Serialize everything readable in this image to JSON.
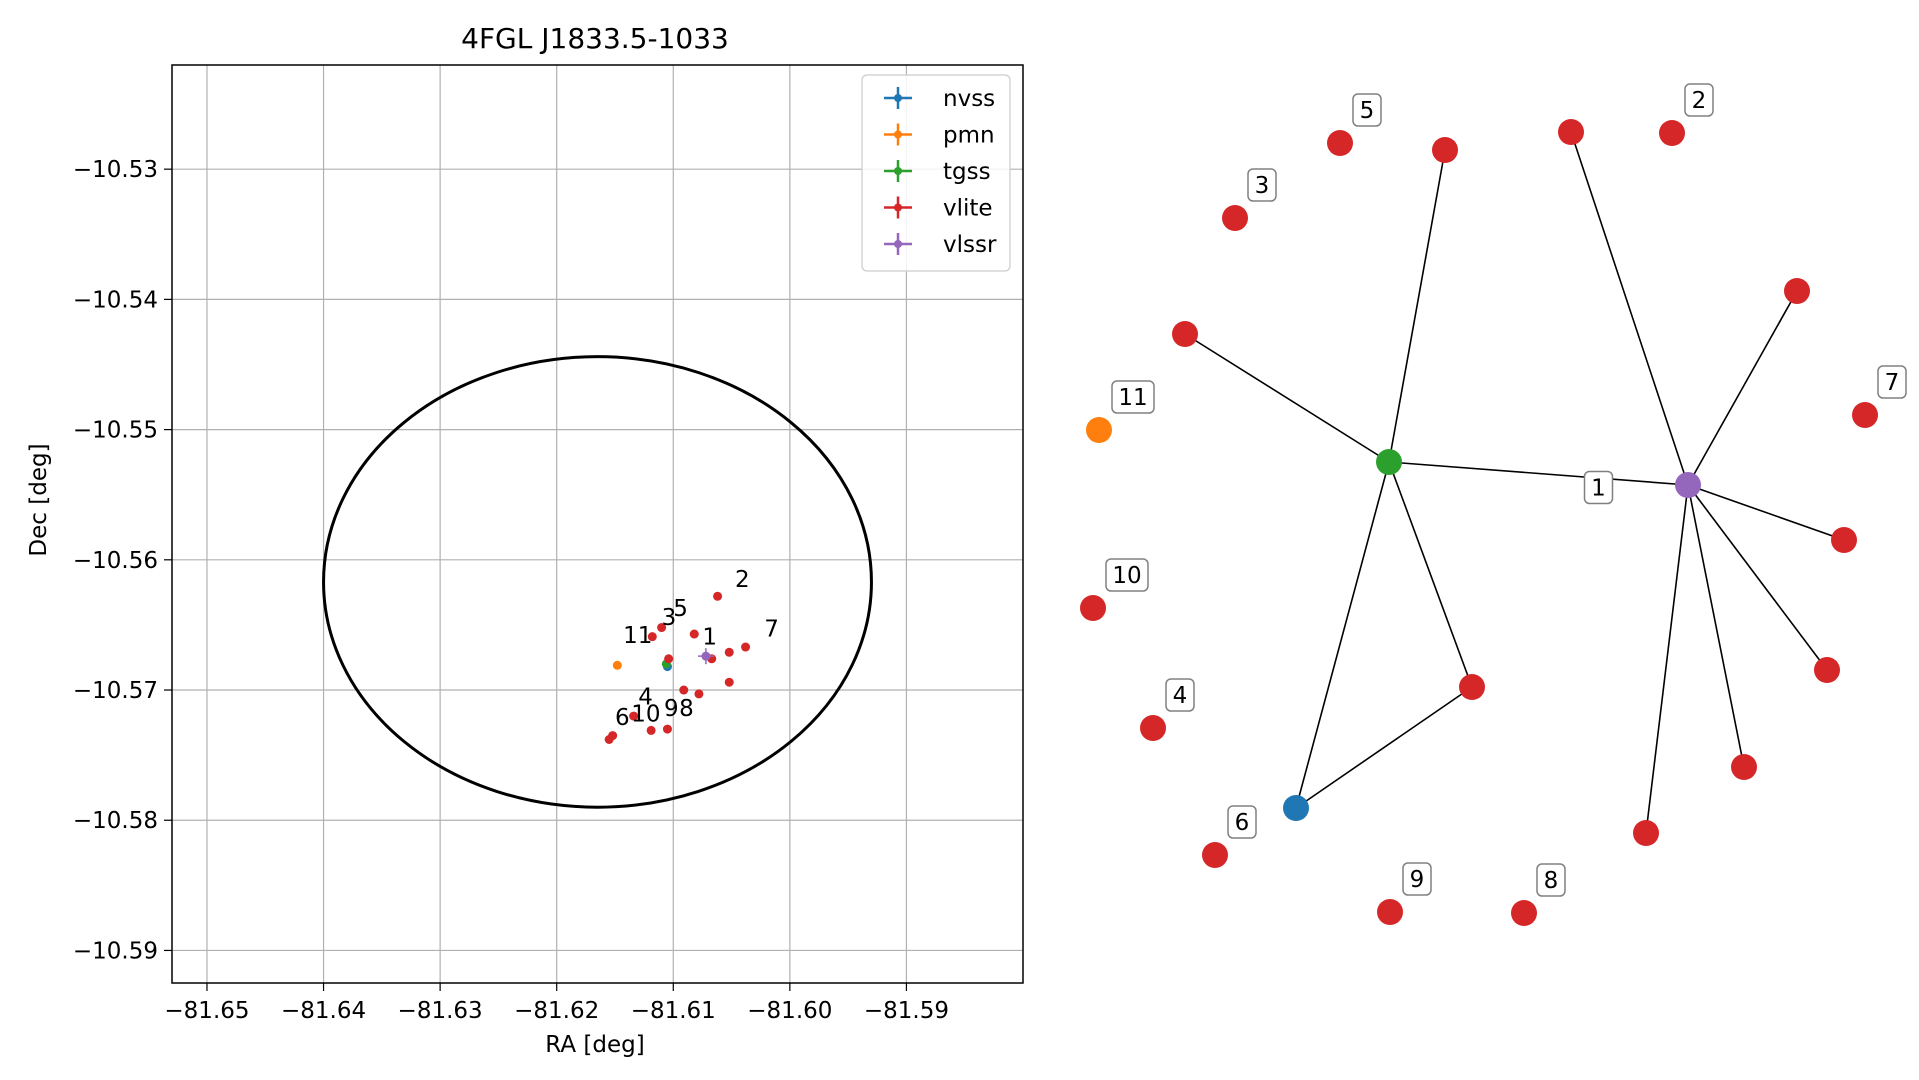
{
  "colors": {
    "nvss": "#1f77b4",
    "pmn": "#ff7f0e",
    "tgss": "#2ca02c",
    "vlite": "#d62728",
    "vlssr": "#9467bd",
    "grid": "#b0b0b0"
  },
  "chart_data": [
    {
      "type": "scatter",
      "title": "4FGL J1833.5-1033",
      "xlabel": "RA [deg]",
      "ylabel": "Dec [deg]",
      "xlim": [
        -81.653,
        -81.58
      ],
      "ylim": [
        -10.5925,
        -10.522
      ],
      "grid": true,
      "legend_placement": "top-right",
      "xticks": [
        -81.65,
        -81.64,
        -81.63,
        -81.62,
        -81.61,
        -81.6,
        -81.59
      ],
      "xtick_labels": [
        "−81.65",
        "−81.64",
        "−81.63",
        "−81.62",
        "−81.61",
        "−81.60",
        "−81.59"
      ],
      "yticks": [
        -10.53,
        -10.54,
        -10.55,
        -10.56,
        -10.57,
        -10.58,
        -10.59
      ],
      "ytick_labels": [
        "−10.53",
        "−10.54",
        "−10.55",
        "−10.56",
        "−10.57",
        "−10.58",
        "−10.59"
      ],
      "ellipse": {
        "center_ra": -81.6165,
        "center_dec": -10.5617,
        "semi_ra": 0.0235,
        "semi_dec": 0.0173
      },
      "series": [
        {
          "name": "nvss",
          "points": [
            {
              "ra": -81.6105,
              "dec": -10.5682
            }
          ]
        },
        {
          "name": "pmn",
          "points": [
            {
              "ra": -81.6148,
              "dec": -10.5681
            }
          ]
        },
        {
          "name": "tgss",
          "points": [
            {
              "ra": -81.6106,
              "dec": -10.568
            }
          ]
        },
        {
          "name": "vlite",
          "points": [
            {
              "ra": -81.6062,
              "dec": -10.5628
            },
            {
              "ra": -81.6118,
              "dec": -10.5659
            },
            {
              "ra": -81.611,
              "dec": -10.5652
            },
            {
              "ra": -81.6082,
              "dec": -10.5657
            },
            {
              "ra": -81.6038,
              "dec": -10.5667
            },
            {
              "ra": -81.6052,
              "dec": -10.5671
            },
            {
              "ra": -81.6067,
              "dec": -10.5676
            },
            {
              "ra": -81.6104,
              "dec": -10.5676
            },
            {
              "ra": -81.6052,
              "dec": -10.5694
            },
            {
              "ra": -81.6091,
              "dec": -10.57
            },
            {
              "ra": -81.6078,
              "dec": -10.5703
            },
            {
              "ra": -81.6134,
              "dec": -10.572
            },
            {
              "ra": -81.6119,
              "dec": -10.5731
            },
            {
              "ra": -81.6105,
              "dec": -10.573
            },
            {
              "ra": -81.6152,
              "dec": -10.5735
            },
            {
              "ra": -81.6155,
              "dec": -10.5738
            }
          ]
        },
        {
          "name": "vlssr",
          "points": [
            {
              "ra": -81.6072,
              "dec": -10.5674
            }
          ]
        }
      ],
      "point_labels": [
        {
          "text": "1",
          "ra": -81.6075,
          "dec": -10.5665
        },
        {
          "text": "2",
          "ra": -81.6047,
          "dec": -10.5621
        },
        {
          "text": "3",
          "ra": -81.611,
          "dec": -10.565
        },
        {
          "text": "5",
          "ra": -81.61,
          "dec": -10.5643
        },
        {
          "text": "7",
          "ra": -81.6022,
          "dec": -10.5659
        },
        {
          "text": "11",
          "ra": -81.6143,
          "dec": -10.5664
        },
        {
          "text": "4",
          "ra": -81.613,
          "dec": -10.5711
        },
        {
          "text": "10",
          "ra": -81.6136,
          "dec": -10.5724
        },
        {
          "text": "6",
          "ra": -81.615,
          "dec": -10.5727
        },
        {
          "text": "9",
          "ra": -81.6108,
          "dec": -10.572
        },
        {
          "text": "8",
          "ra": -81.6095,
          "dec": -10.572
        }
      ]
    },
    {
      "type": "graph",
      "nodes": [
        {
          "id": "tgss",
          "source": "tgss",
          "label": ""
        },
        {
          "id": "vlssr",
          "source": "vlssr",
          "label": ""
        },
        {
          "id": "nvss",
          "source": "nvss",
          "label": ""
        },
        {
          "id": "pmn11",
          "source": "pmn",
          "label": "11"
        },
        {
          "id": "v10",
          "source": "vlite",
          "label": "10"
        },
        {
          "id": "v4",
          "source": "vlite",
          "label": "4"
        },
        {
          "id": "v6",
          "source": "vlite",
          "label": "6"
        },
        {
          "id": "v9",
          "source": "vlite",
          "label": "9"
        },
        {
          "id": "v8",
          "source": "vlite",
          "label": "8"
        },
        {
          "id": "v3",
          "source": "vlite",
          "label": "3"
        },
        {
          "id": "v5",
          "source": "vlite",
          "label": "5"
        },
        {
          "id": "v2",
          "source": "vlite",
          "label": "2"
        },
        {
          "id": "v7",
          "source": "vlite",
          "label": "7"
        },
        {
          "id": "va",
          "source": "vlite",
          "label": ""
        },
        {
          "id": "vb",
          "source": "vlite",
          "label": ""
        },
        {
          "id": "vc",
          "source": "vlite",
          "label": ""
        },
        {
          "id": "vd",
          "source": "vlite",
          "label": ""
        },
        {
          "id": "ve",
          "source": "vlite",
          "label": ""
        },
        {
          "id": "vf",
          "source": "vlite",
          "label": ""
        },
        {
          "id": "vg",
          "source": "vlite",
          "label": ""
        },
        {
          "id": "vh",
          "source": "vlite",
          "label": ""
        },
        {
          "id": "vi",
          "source": "vlite",
          "label": ""
        }
      ],
      "edges": [
        {
          "from": "tgss",
          "to": "vlssr",
          "label": "1"
        },
        {
          "from": "tgss",
          "to": "vb"
        },
        {
          "from": "tgss",
          "to": "va"
        },
        {
          "from": "tgss",
          "to": "nvss"
        },
        {
          "from": "tgss",
          "to": "vd"
        },
        {
          "from": "nvss",
          "to": "vd"
        },
        {
          "from": "vlssr",
          "to": "vc"
        },
        {
          "from": "vlssr",
          "to": "ve"
        },
        {
          "from": "vlssr",
          "to": "vf"
        },
        {
          "from": "vlssr",
          "to": "vg"
        },
        {
          "from": "vlssr",
          "to": "vh"
        },
        {
          "from": "vlssr",
          "to": "vi"
        }
      ]
    }
  ]
}
